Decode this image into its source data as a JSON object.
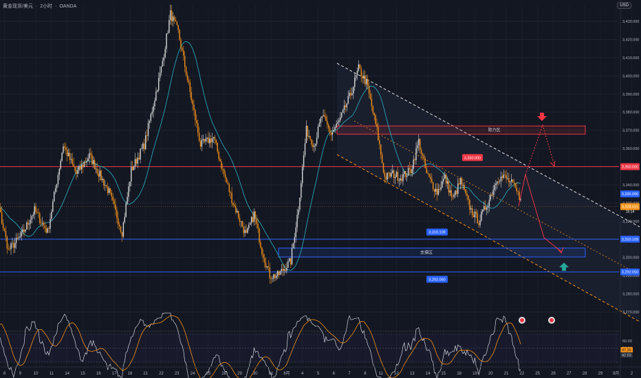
{
  "header": {
    "symbol": "黄金现货/美元",
    "separator": "·",
    "timeframe": "2小时",
    "broker": "OANDA"
  },
  "currency_badge": "USD",
  "chart_data": {
    "type": "candlestick",
    "price_axis": {
      "ylim": [
        3262,
        3442
      ],
      "ticks": [
        3270,
        3280,
        3290,
        3300,
        3310,
        3320,
        3330,
        3340,
        3350,
        3360,
        3370,
        3380,
        3390,
        3400,
        3410,
        3420,
        3430
      ],
      "tick_labels": [
        "3,270.000",
        "3,280.000",
        "3,290.000",
        "3,300.000",
        "3,310.000",
        "3,320.000",
        "3,330.000",
        "3,340.000",
        "3,350.000",
        "3,360.000",
        "3,370.000",
        "3,380.000",
        "3,390.000",
        "3,400.000",
        "3,410.000",
        "3,420.000",
        "3,430.000"
      ]
    },
    "time_axis": {
      "labels": [
        "8",
        "9",
        "10",
        "11",
        "14",
        "15",
        "16",
        "17",
        "18",
        "21",
        "22",
        "23",
        "24",
        "25",
        "28",
        "29",
        "30",
        "31",
        "8月",
        "4",
        "5",
        "6",
        "7",
        "8",
        "11",
        "12",
        "13",
        "14",
        "15",
        "18",
        "19",
        "20",
        "21",
        "22",
        "25",
        "26",
        "27",
        "28",
        "29",
        "9月",
        "2"
      ],
      "label_bar_index": [
        15,
        27,
        39,
        51,
        63,
        75,
        87,
        99,
        111,
        123,
        135,
        147,
        159,
        171,
        183,
        195,
        207,
        219,
        231,
        243,
        255,
        267,
        279,
        291,
        303,
        315,
        327,
        339,
        351,
        363,
        375,
        387,
        399,
        411,
        423,
        435,
        447,
        459,
        471,
        483,
        495
      ]
    },
    "anchors": [
      [
        0,
        3318
      ],
      [
        8,
        3336
      ],
      [
        18,
        3304
      ],
      [
        28,
        3312
      ],
      [
        38,
        3326
      ],
      [
        48,
        3314
      ],
      [
        60,
        3362
      ],
      [
        70,
        3346
      ],
      [
        80,
        3356
      ],
      [
        95,
        3336
      ],
      [
        105,
        3314
      ],
      [
        112,
        3348
      ],
      [
        122,
        3362
      ],
      [
        135,
        3404
      ],
      [
        142,
        3434
      ],
      [
        148,
        3424
      ],
      [
        155,
        3398
      ],
      [
        165,
        3362
      ],
      [
        175,
        3366
      ],
      [
        182,
        3348
      ],
      [
        190,
        3330
      ],
      [
        200,
        3312
      ],
      [
        206,
        3324
      ],
      [
        212,
        3304
      ],
      [
        218,
        3290
      ],
      [
        224,
        3290
      ],
      [
        234,
        3298
      ],
      [
        240,
        3328
      ],
      [
        246,
        3370
      ],
      [
        252,
        3362
      ],
      [
        258,
        3378
      ],
      [
        265,
        3368
      ],
      [
        272,
        3376
      ],
      [
        280,
        3390
      ],
      [
        286,
        3404
      ],
      [
        292,
        3396
      ],
      [
        300,
        3370
      ],
      [
        306,
        3344
      ],
      [
        312,
        3346
      ],
      [
        318,
        3344
      ],
      [
        326,
        3348
      ],
      [
        332,
        3364
      ],
      [
        338,
        3346
      ],
      [
        346,
        3336
      ],
      [
        352,
        3344
      ],
      [
        358,
        3332
      ],
      [
        364,
        3342
      ],
      [
        372,
        3326
      ],
      [
        378,
        3320
      ],
      [
        386,
        3332
      ],
      [
        392,
        3344
      ],
      [
        398,
        3344
      ],
      [
        404,
        3340
      ],
      [
        410,
        3332
      ]
    ],
    "last_price": 3328,
    "last_price_label": "3,328.615",
    "last_price_countdown": "15:14",
    "second_price_tag": "3,335.000",
    "levels": [
      {
        "name": "resistance-line",
        "price": 3350,
        "label": "3,350.000",
        "color": "#f23645"
      },
      {
        "name": "support-line-upper",
        "price": 3310.1,
        "label": "3,310.109",
        "color": "#2962ff"
      },
      {
        "name": "support-line-lower",
        "price": 3292.05,
        "label": "3,292.050",
        "color": "#2962ff"
      }
    ],
    "zones": [
      {
        "name": "resistance-zone",
        "label": "阻力区",
        "top": 3372.4,
        "bottom": 3367.9,
        "color": "#f23645"
      },
      {
        "name": "support-zone",
        "label": "支撑区",
        "top": 3305.2,
        "bottom": 3300.3,
        "color": "#2962ff"
      }
    ],
    "line_labels": {
      "resistance_mid": "3,350.000",
      "support_mid_upper": "3,310.109",
      "support_mid_lower": "3,292.050"
    },
    "rsi": {
      "ticks": [
        60,
        50,
        40
      ],
      "tick_labels": [
        "60.00",
        "50.00",
        "40.00"
      ],
      "current": "47.39",
      "ma": "42.03"
    }
  }
}
